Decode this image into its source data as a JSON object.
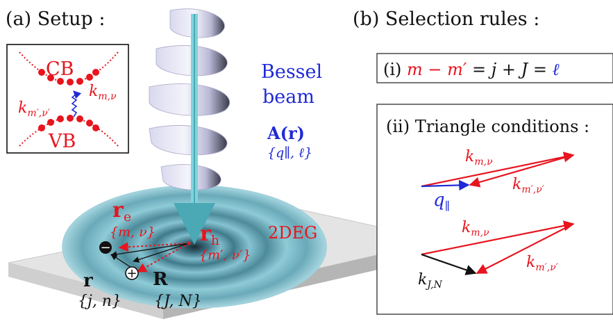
{
  "panel_a": {
    "heading": "(a) Setup :",
    "inset": {
      "cb": "CB",
      "vb": "VB",
      "k_m_nu": "k",
      "k_m_nu_sub": "m,ν",
      "k_mp_nup": "k",
      "k_mp_nup_sub": "m′,ν′"
    },
    "beam_line1": "Bessel",
    "beam_line2": "beam",
    "vector_potential": "A(r)",
    "beam_numbers": "{q∥, ℓ}",
    "r_e": "r",
    "r_e_sub": "e",
    "r_e_numbers": "{m, ν}",
    "r_h": "r",
    "r_h_sub": "h",
    "r_h_numbers": "{m′, ν′}",
    "twodeg": "2DEG",
    "rel_coord": "r",
    "rel_numbers": "{j, n}",
    "com_coord": "R",
    "com_numbers": "{J, N}",
    "electron_sign": "−",
    "hole_sign": "+"
  },
  "panel_b": {
    "heading": "(b) Selection rules :",
    "rule_i_prefix": "(i)",
    "rule_i_red": "m − m′",
    "rule_i_black": " = j + J = ",
    "rule_i_blue": "ℓ",
    "rule_ii": "(ii) Triangle conditions :",
    "tri1_k_m_nu": "k",
    "tri1_k_m_nu_sub": "m,ν",
    "tri1_k_mp_nup": "k",
    "tri1_k_mp_nup_sub": "m′,ν′",
    "tri1_q": "q",
    "tri1_q_sub": "∥",
    "tri2_k_m_nu": "k",
    "tri2_k_m_nu_sub": "m,ν",
    "tri2_k_mp_nup": "k",
    "tri2_k_mp_nup_sub": "m′,ν′",
    "tri2_k_jn": "k",
    "tri2_k_jn_sub": "J,N"
  },
  "colors": {
    "red": "#e8141e",
    "blue": "#1f2ad6",
    "black": "#111111",
    "beam": "#7fd3dc",
    "disk": "#6fb3c6"
  }
}
